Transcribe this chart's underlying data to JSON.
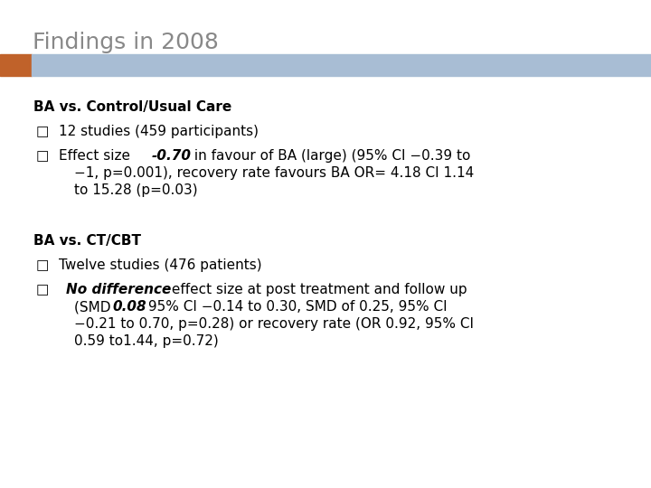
{
  "title": "Findings in 2008",
  "title_color": "#888888",
  "title_fontsize": 18,
  "bg_color": "#ffffff",
  "bar_orange_color": "#c0622a",
  "bar_blue_color": "#a8bdd4",
  "bullet_char": "□",
  "text_color": "#000000",
  "fs": 11,
  "s1_heading": "BA vs. Control/Usual Care",
  "s1_b1": "12 studies (459 participants)",
  "s1_b2_p1": "Effect size ",
  "s1_b2_bi": "-0.70",
  "s1_b2_p2": " in favour of BA (large) (95% CI −0.39 to",
  "s1_b2_l2": "−1, p=0.001), recovery rate favours BA OR= 4.18 CI 1.14",
  "s1_b2_l3": "to 15.28 (p=0.03)",
  "s2_heading": "BA vs. CT/CBT",
  "s2_b1": "Twelve studies (476 patients)",
  "s2_b2_bi": "No difference",
  "s2_b2_p1": " effect size at post treatment and follow up",
  "s2_b2_l2_p1": "(SMD ",
  "s2_b2_l2_bi": "0.08",
  "s2_b2_l2_p2": " 95% CI −0.14 to 0.30, SMD of 0.25, 95% CI",
  "s2_b2_l3": "−0.21 to 0.70, p=0.28) or recovery rate (OR 0.92, 95% CI",
  "s2_b2_l4": "0.59 to1.44, p=0.72)"
}
